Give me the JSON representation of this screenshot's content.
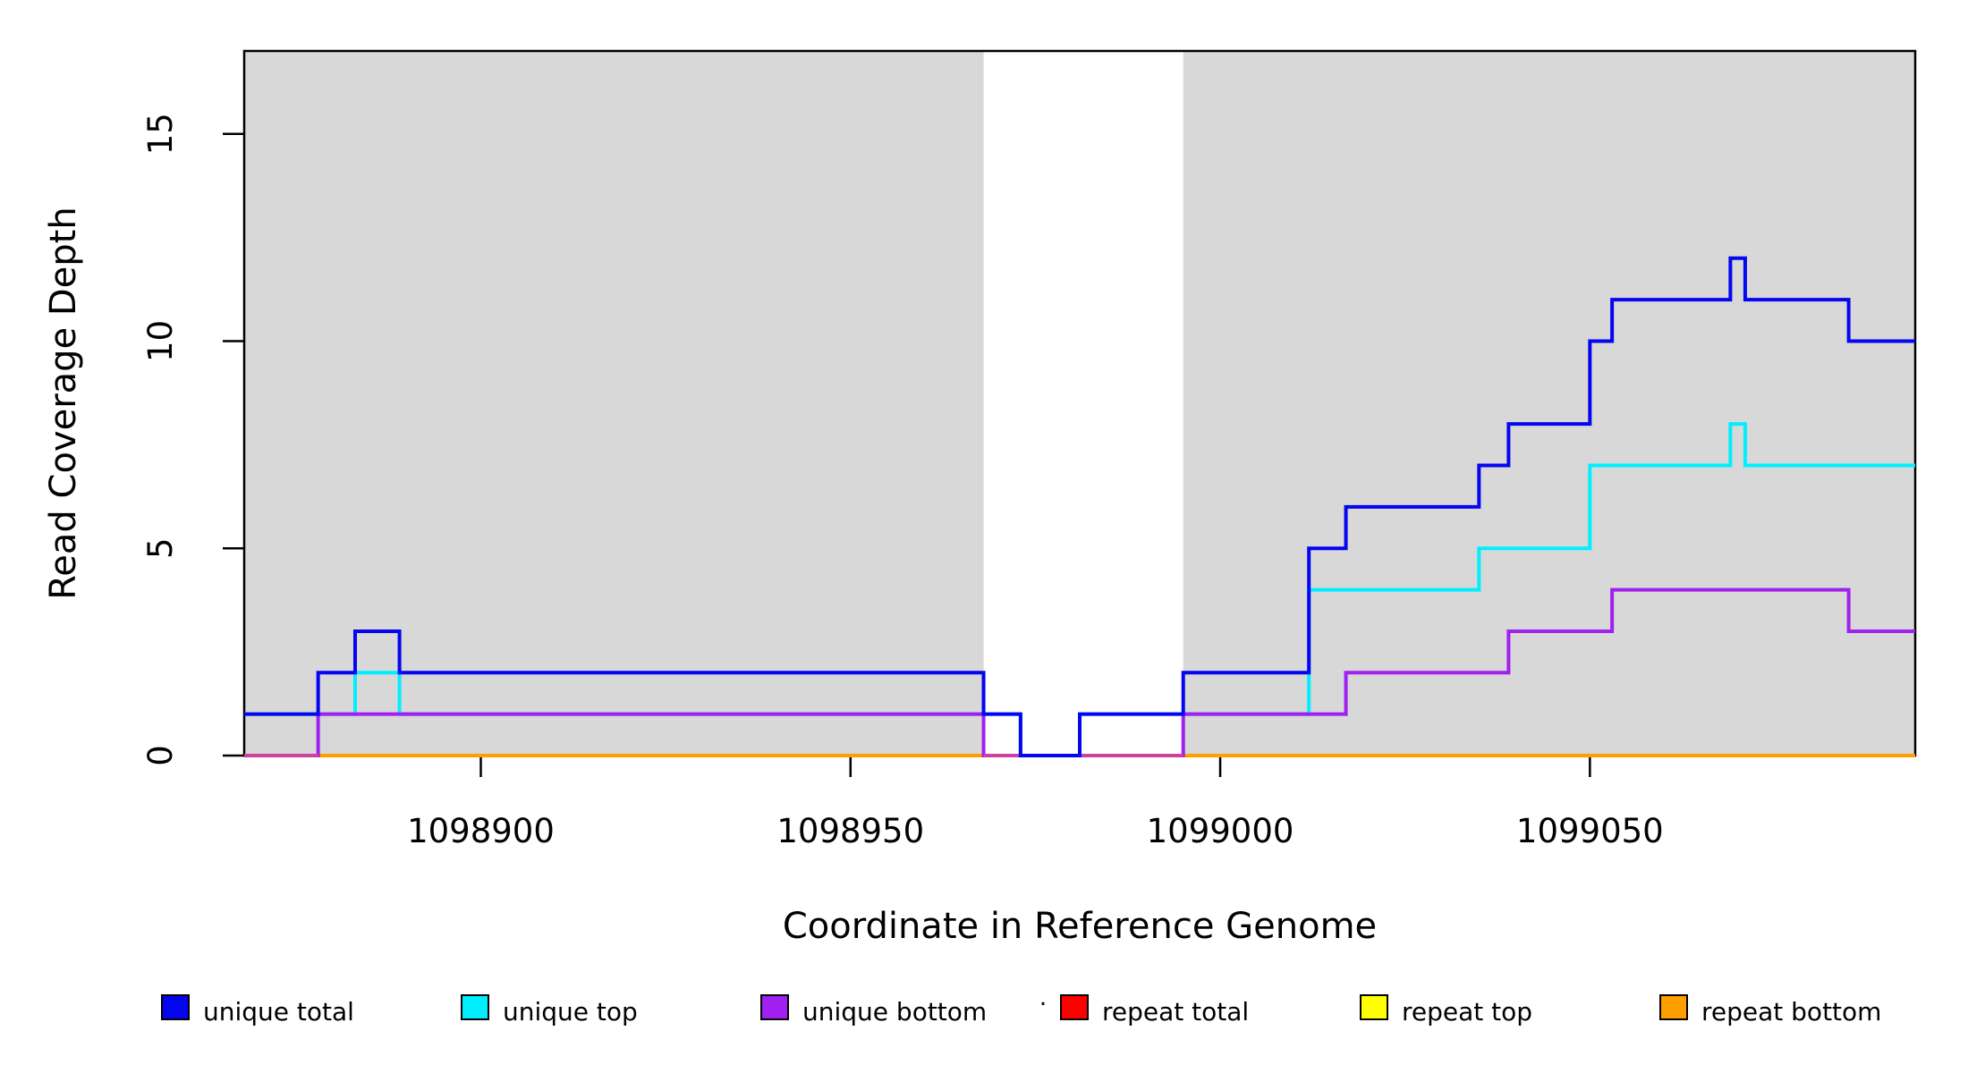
{
  "figure": {
    "background": "#ffffff",
    "description": "Read coverage depth step plot across a reference genome window"
  },
  "chart_data": {
    "type": "line",
    "subtype": "step",
    "title": "",
    "xlabel": "Coordinate in Reference Genome",
    "ylabel": "Read Coverage Depth",
    "xlim": [
      1098868,
      1099094
    ],
    "ylim": [
      0,
      17
    ],
    "x_end": 1099094,
    "grid": false,
    "xticks": [
      {
        "value": 1098900,
        "label": "1098900"
      },
      {
        "value": 1098950,
        "label": "1098950"
      },
      {
        "value": 1099000,
        "label": "1099000"
      },
      {
        "value": 1099050,
        "label": "1099050"
      }
    ],
    "yticks": [
      {
        "value": 0,
        "label": "0"
      },
      {
        "value": 5,
        "label": "5"
      },
      {
        "value": 10,
        "label": "10"
      },
      {
        "value": 15,
        "label": "15"
      }
    ],
    "shaded_regions": {
      "color": "#D8D8D8",
      "ranges": [
        [
          1098868,
          1098968
        ],
        [
          1098995,
          1099094
        ]
      ]
    },
    "series": [
      {
        "name": "unique total",
        "color": "#0505F0",
        "steps": [
          [
            1098868,
            1
          ],
          [
            1098878,
            2
          ],
          [
            1098883,
            3
          ],
          [
            1098889,
            2
          ],
          [
            1098968,
            1
          ],
          [
            1098973,
            0
          ],
          [
            1098981,
            1
          ],
          [
            1098995,
            2
          ],
          [
            1099012,
            5
          ],
          [
            1099017,
            6
          ],
          [
            1099035,
            7
          ],
          [
            1099039,
            8
          ],
          [
            1099050,
            10
          ],
          [
            1099053,
            11
          ],
          [
            1099069,
            12
          ],
          [
            1099071,
            11
          ],
          [
            1099085,
            10
          ]
        ]
      },
      {
        "name": "unique top",
        "color": "#00EFFF",
        "steps": [
          [
            1098868,
            1
          ],
          [
            1098883,
            2
          ],
          [
            1098889,
            1
          ],
          [
            1098973,
            0
          ],
          [
            1098981,
            1
          ],
          [
            1099012,
            4
          ],
          [
            1099035,
            5
          ],
          [
            1099050,
            7
          ],
          [
            1099069,
            8
          ],
          [
            1099071,
            7
          ]
        ]
      },
      {
        "name": "unique bottom",
        "color": "#A020F0",
        "steps": [
          [
            1098868,
            0
          ],
          [
            1098878,
            1
          ],
          [
            1098968,
            0
          ],
          [
            1098995,
            1
          ],
          [
            1099017,
            2
          ],
          [
            1099039,
            3
          ],
          [
            1099053,
            4
          ],
          [
            1099085,
            3
          ]
        ]
      },
      {
        "name": "repeat total",
        "color": "#FF0000",
        "steps": [
          [
            1098868,
            0
          ]
        ]
      },
      {
        "name": "repeat top",
        "color": "#FFFF00",
        "steps": [
          [
            1098868,
            0
          ]
        ]
      },
      {
        "name": "repeat bottom",
        "color": "#FF9E00",
        "steps": [
          [
            1098868,
            0
          ]
        ]
      }
    ],
    "style_colors": {
      "axis": "#000000",
      "plot_border": "#000000",
      "purple_zero_over_orange_blend": "#CC42A2",
      "shaded_region_gray": "#D8D8D8"
    },
    "legend": {
      "position": "bottom",
      "separator_dot": ".",
      "items": [
        {
          "label": "unique total",
          "color": "#0505F0"
        },
        {
          "label": "unique top",
          "color": "#00EFFF"
        },
        {
          "label": "unique bottom",
          "color": "#A020F0"
        },
        {
          "label": "repeat total",
          "color": "#FF0000"
        },
        {
          "label": "repeat top",
          "color": "#FFFF00"
        },
        {
          "label": "repeat bottom",
          "color": "#FF9E00"
        }
      ]
    }
  }
}
